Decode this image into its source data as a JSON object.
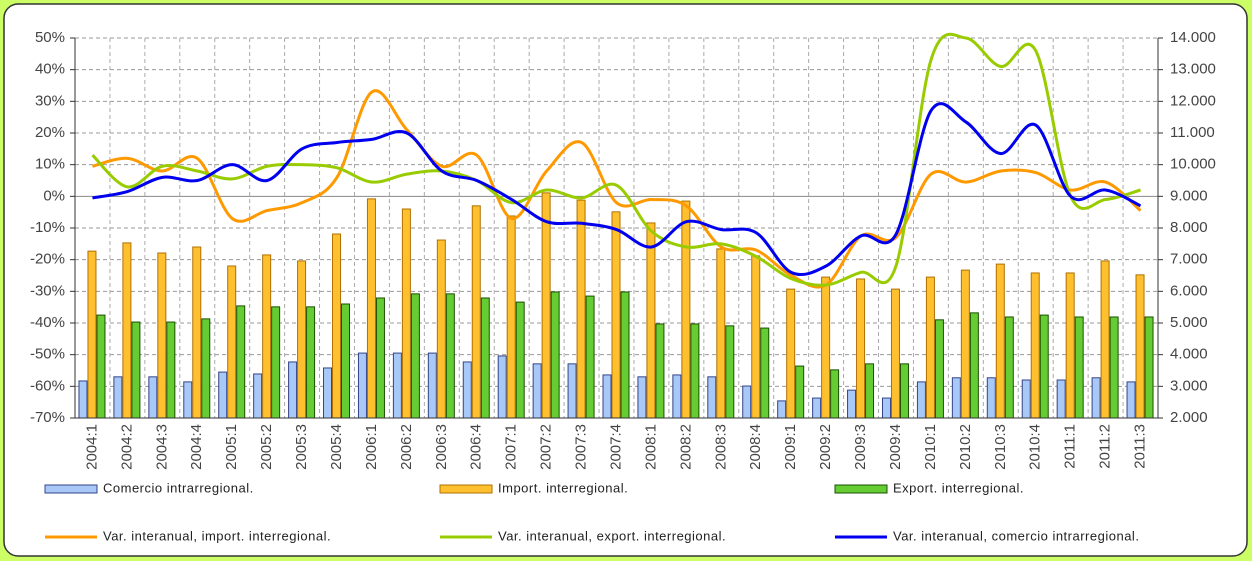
{
  "chart_data": {
    "type": "bar",
    "categories": [
      "2004:1",
      "2004:2",
      "2004:3",
      "2004:4",
      "2005:1",
      "2005:2",
      "2005:3",
      "2005:4",
      "2006:1",
      "2006:2",
      "2006:3",
      "2006:4",
      "2007:1",
      "2007:2",
      "2007:3",
      "2007:4",
      "2008:1",
      "2008:2",
      "2008:3",
      "2008:4",
      "2009:1",
      "2009:2",
      "2009:3",
      "2009:4",
      "2010:1",
      "2010:2",
      "2010:3",
      "2010:4",
      "2011:1",
      "2011:2",
      "2011:3"
    ],
    "series": [
      {
        "name": "Comercio intrarregional.",
        "type": "bar",
        "axis": "y2",
        "color": "#a8c8f8",
        "values": [
          3170,
          3300,
          3300,
          3140,
          3450,
          3390,
          3770,
          3580,
          4050,
          4050,
          4050,
          3770,
          3960,
          3710,
          3710,
          3360,
          3300,
          3360,
          3300,
          3010,
          2540,
          2630,
          2880,
          2630,
          3140,
          3270,
          3270,
          3200,
          3200,
          3270,
          3140
        ]
      },
      {
        "name": "Import. interregional.",
        "type": "bar",
        "axis": "y2",
        "color": "#ffc030",
        "values": [
          7270,
          7530,
          7210,
          7400,
          6800,
          7150,
          6960,
          7810,
          8920,
          8600,
          7620,
          8700,
          8380,
          9110,
          8880,
          8510,
          8160,
          8850,
          7340,
          7120,
          6070,
          6450,
          6390,
          6070,
          6450,
          6670,
          6860,
          6580,
          6580,
          6960,
          6520
        ]
      },
      {
        "name": "Export. interregional.",
        "type": "bar",
        "axis": "y2",
        "color": "#66cc33",
        "values": [
          5250,
          5030,
          5030,
          5130,
          5540,
          5510,
          5510,
          5600,
          5790,
          5920,
          5920,
          5790,
          5660,
          5980,
          5850,
          5980,
          4970,
          4970,
          4910,
          4840,
          3640,
          3520,
          3710,
          3710,
          5100,
          5320,
          5190,
          5250,
          5190,
          5190,
          5190
        ]
      },
      {
        "name": "Var. interanual, import. interregional.",
        "type": "line",
        "color": "#ff9900",
        "values": [
          9.5,
          12,
          8,
          12,
          -7,
          -4.5,
          -2,
          6,
          33,
          21,
          9.5,
          13,
          -7,
          8,
          17,
          -2,
          -1,
          -3,
          -16,
          -17,
          -25,
          -28,
          -12.5,
          -13,
          7,
          4.5,
          8,
          7.5,
          2,
          4.5,
          -4.5
        ]
      },
      {
        "name": "Var. interanual, export. interregional.",
        "type": "line",
        "color": "#99cc00",
        "values": [
          13,
          3,
          9.5,
          8,
          5.5,
          9.5,
          10,
          9,
          4.5,
          7,
          8,
          5,
          -2,
          2,
          -0.5,
          3.5,
          -11,
          -16,
          -15,
          -19,
          -26,
          -28,
          -24,
          -22,
          43,
          50,
          41,
          46,
          0,
          -1,
          2
        ]
      },
      {
        "name": "Var. interanual, comercio intrarregional.",
        "type": "line",
        "color": "#0000ee",
        "values": [
          -0.5,
          1.5,
          6,
          5,
          10,
          5,
          15,
          17,
          18,
          20,
          8,
          5,
          -1,
          -8,
          -8.5,
          -10.5,
          -16,
          -8,
          -10.5,
          -11.5,
          -24,
          -22,
          -12.5,
          -12,
          27,
          23.5,
          13.5,
          22.5,
          0,
          2,
          -3
        ]
      }
    ],
    "ylim": [
      -70,
      50
    ],
    "yticks": [
      {
        "value": -70,
        "label": "-70%"
      },
      {
        "value": -60,
        "label": "-60%"
      },
      {
        "value": -50,
        "label": "-50%"
      },
      {
        "value": -40,
        "label": "-40%"
      },
      {
        "value": -30,
        "label": "-30%"
      },
      {
        "value": -20,
        "label": "-20%"
      },
      {
        "value": -10,
        "label": "-10%"
      },
      {
        "value": 0,
        "label": "0%"
      },
      {
        "value": 10,
        "label": "10%"
      },
      {
        "value": 20,
        "label": "20%"
      },
      {
        "value": 30,
        "label": "30%"
      },
      {
        "value": 40,
        "label": "40%"
      },
      {
        "value": 50,
        "label": "50%"
      }
    ],
    "y2lim": [
      2000,
      14000
    ],
    "y2ticks": [
      {
        "value": 2000,
        "label": "2.000"
      },
      {
        "value": 3000,
        "label": "3.000"
      },
      {
        "value": 4000,
        "label": "4.000"
      },
      {
        "value": 5000,
        "label": "5.000"
      },
      {
        "value": 6000,
        "label": "6.000"
      },
      {
        "value": 7000,
        "label": "7.000"
      },
      {
        "value": 8000,
        "label": "8.000"
      },
      {
        "value": 9000,
        "label": "9.000"
      },
      {
        "value": 10000,
        "label": "10.000"
      },
      {
        "value": 11000,
        "label": "11.000"
      },
      {
        "value": 12000,
        "label": "12.000"
      },
      {
        "value": 13000,
        "label": "13.000"
      },
      {
        "value": 14000,
        "label": "14.000"
      }
    ],
    "grid": true
  }
}
